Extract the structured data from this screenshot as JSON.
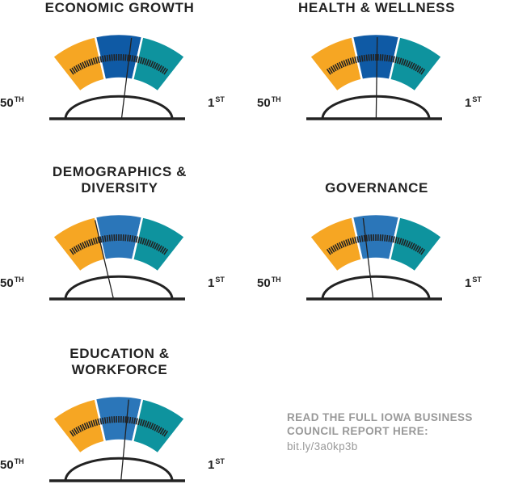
{
  "colors": {
    "orange": "#F6A623",
    "blue_dark": "#0F5AA5",
    "blue": "#2B76B9",
    "teal": "#0E939E",
    "ink": "#222222",
    "note": "#999999"
  },
  "gauges": [
    {
      "title": "ECONOMIC GROWTH",
      "low": "50",
      "low_sup": "TH",
      "high": "1",
      "high_sup": "ST",
      "middle_color": "#0F5AA5"
    },
    {
      "title": "HEALTH & WELLNESS",
      "low": "50",
      "low_sup": "TH",
      "high": "1",
      "high_sup": "ST",
      "middle_color": "#0F5AA5"
    },
    {
      "title": "DEMOGRAPHICS & DIVERSITY",
      "low": "50",
      "low_sup": "TH",
      "high": "1",
      "high_sup": "ST",
      "middle_color": "#2B76B9"
    },
    {
      "title": "GOVERNANCE",
      "low": "50",
      "low_sup": "TH",
      "high": "1",
      "high_sup": "ST",
      "middle_color": "#2B76B9"
    },
    {
      "title": "EDUCATION & WORKFORCE",
      "low": "50",
      "low_sup": "TH",
      "high": "1",
      "high_sup": "ST",
      "middle_color": "#2B76B9"
    }
  ],
  "chart_data": {
    "type": "gauge",
    "scale": {
      "left": "50th",
      "right": "1st",
      "min_rank": 50,
      "max_rank": 1
    },
    "categories": [
      "ECONOMIC GROWTH",
      "HEALTH & WELLNESS",
      "DEMOGRAPHICS & DIVERSITY",
      "GOVERNANCE",
      "EDUCATION & WORKFORCE"
    ],
    "values": [
      21,
      25,
      34,
      30,
      22
    ]
  },
  "cta": {
    "text": "READ THE FULL IOWA BUSINESS COUNCIL REPORT HERE:",
    "url": "bit.ly/3a0kp3b"
  }
}
